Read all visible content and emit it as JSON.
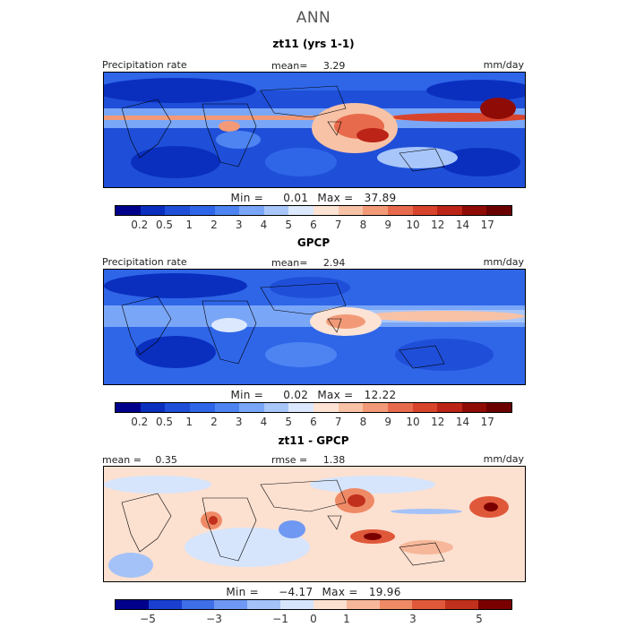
{
  "figure": {
    "title": "ANN"
  },
  "panels": [
    {
      "subtitle": "zt11 (yrs 1-1)",
      "left_label": "Precipitation rate",
      "center_label": "mean=",
      "center_value": "3.29",
      "right_label": "mm/day",
      "min_label": "Min =",
      "min_value": "0.01",
      "max_label": "Max =",
      "max_value": "37.89",
      "tick_labels": [
        "0.2",
        "0.5",
        "1",
        "2",
        "3",
        "4",
        "5",
        "6",
        "7",
        "8",
        "9",
        "10",
        "12",
        "14",
        "17"
      ]
    },
    {
      "subtitle": "GPCP",
      "left_label": "Precipitation rate",
      "center_label": "mean=",
      "center_value": "2.94",
      "right_label": "mm/day",
      "min_label": "Min =",
      "min_value": "0.02",
      "max_label": "Max =",
      "max_value": "12.22",
      "tick_labels": [
        "0.2",
        "0.5",
        "1",
        "2",
        "3",
        "4",
        "5",
        "6",
        "7",
        "8",
        "9",
        "10",
        "12",
        "14",
        "17"
      ]
    },
    {
      "subtitle": "zt11 - GPCP",
      "left_label": "mean =",
      "left_value": "0.35",
      "center_label": "rmse =",
      "center_value": "1.38",
      "right_label": "mm/day",
      "min_label": "Min =",
      "min_value": "−4.17",
      "max_label": "Max =",
      "max_value": "19.96",
      "tick_labels": [
        "−5",
        "−3",
        "−1",
        "0",
        "1",
        "3",
        "5"
      ]
    }
  ],
  "colors": {
    "abs_scale": [
      "#00008b",
      "#0a2fbf",
      "#1f4fd8",
      "#2f66e8",
      "#4d84f2",
      "#7aa6f7",
      "#a8c6fa",
      "#dbe8fd",
      "#fde3d4",
      "#f8c2a6",
      "#f29a78",
      "#e86a4c",
      "#d8432c",
      "#bb2416",
      "#8f0c06",
      "#6b0000"
    ],
    "diff_scale": [
      "#00008b",
      "#1a3fd0",
      "#3e6ee8",
      "#6f98f2",
      "#a4c2f8",
      "#d6e5fc",
      "#fce0d0",
      "#f6b79a",
      "#ef8a66",
      "#e0583a",
      "#c0301c",
      "#7a0000"
    ]
  },
  "chart_data": [
    {
      "type": "heatmap",
      "title": "zt11 (yrs 1-1)",
      "variable": "Precipitation rate",
      "units": "mm/day",
      "mean": 3.29,
      "min": 0.01,
      "max": 37.89,
      "colorbar_levels": [
        0.2,
        0.5,
        1,
        2,
        3,
        4,
        5,
        6,
        7,
        8,
        9,
        10,
        12,
        14,
        17
      ]
    },
    {
      "type": "heatmap",
      "title": "GPCP",
      "variable": "Precipitation rate",
      "units": "mm/day",
      "mean": 2.94,
      "min": 0.02,
      "max": 12.22,
      "colorbar_levels": [
        0.2,
        0.5,
        1,
        2,
        3,
        4,
        5,
        6,
        7,
        8,
        9,
        10,
        12,
        14,
        17
      ]
    },
    {
      "type": "heatmap",
      "title": "zt11 - GPCP",
      "units": "mm/day",
      "mean": 0.35,
      "rmse": 1.38,
      "min": -4.17,
      "max": 19.96,
      "colorbar_levels": [
        -5,
        -3,
        -1,
        0,
        1,
        3,
        5
      ]
    }
  ]
}
